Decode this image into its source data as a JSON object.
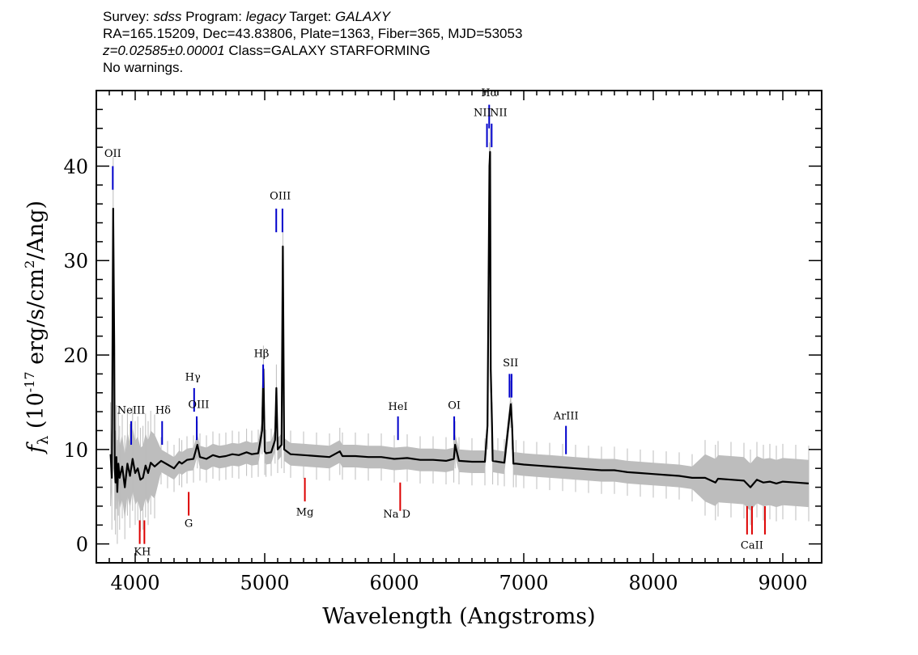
{
  "header": {
    "survey_label": "Survey:",
    "survey_value": "sdss",
    "program_label": "Program:",
    "program_value": "legacy",
    "target_label": "Target:",
    "target_value": "GALAXY",
    "line2": "RA=165.15209, Dec=43.83806, Plate=1363, Fiber=365, MJD=53053",
    "redshift": "z=0.02585±0.00001",
    "class_text": "Class=GALAXY STARFORMING",
    "warnings": "No warnings."
  },
  "colors": {
    "flux": "#000000",
    "error_band": "#bdbdbd",
    "emission": "#0000cc",
    "absorption": "#dd0000"
  },
  "chart_data": {
    "type": "line",
    "title": "",
    "xlabel": "Wavelength (Angstroms)",
    "ylabel": "f_λ (10^-17 erg/s/cm^2/Ang)",
    "xlim": [
      3700,
      9300
    ],
    "ylim": [
      -2,
      48
    ],
    "x_ticks": [
      4000,
      5000,
      6000,
      7000,
      8000,
      9000
    ],
    "y_ticks": [
      0,
      10,
      20,
      30,
      40
    ],
    "grid": false,
    "legend": "none",
    "series": [
      {
        "x": [
          3810,
          3820,
          3830,
          3838,
          3842,
          3848,
          3855,
          3862,
          3870,
          3880,
          3900,
          3920,
          3940,
          3960,
          3980,
          4000,
          4020,
          4040,
          4060,
          4080,
          4100,
          4120,
          4150,
          4200,
          4250,
          4300,
          4340,
          4360,
          4400,
          4450,
          4480,
          4500,
          4550,
          4600,
          4650,
          4700,
          4750,
          4800,
          4860,
          4900,
          4950,
          4980,
          4990,
          5000,
          5010,
          5050,
          5080,
          5090,
          5100,
          5130,
          5140,
          5150,
          5200,
          5300,
          5400,
          5500,
          5580,
          5600,
          5700,
          5800,
          5900,
          6000,
          6100,
          6200,
          6300,
          6400,
          6460,
          6470,
          6500,
          6600,
          6700,
          6720,
          6735,
          6740,
          6745,
          6755,
          6760,
          6800,
          6850,
          6900,
          6910,
          6920,
          6940,
          7000,
          7100,
          7200,
          7300,
          7400,
          7500,
          7600,
          7700,
          7800,
          7900,
          8000,
          8100,
          8200,
          8300,
          8400,
          8480,
          8500,
          8600,
          8700,
          8750,
          8800,
          8850,
          8900,
          8950,
          9000,
          9100,
          9200
        ],
        "y": [
          9.5,
          7.0,
          35.5,
          21.0,
          8.0,
          6.5,
          9.2,
          5.5,
          8.5,
          7.0,
          8.2,
          6.0,
          8.5,
          7.2,
          9.0,
          7.5,
          8.0,
          6.8,
          7.0,
          8.3,
          7.5,
          8.6,
          8.2,
          8.8,
          8.4,
          8.0,
          8.7,
          8.5,
          8.9,
          9.0,
          10.5,
          9.2,
          9.0,
          9.4,
          9.2,
          9.3,
          9.5,
          9.4,
          9.7,
          9.5,
          9.6,
          12.0,
          18.5,
          9.8,
          9.6,
          9.7,
          11.0,
          16.5,
          10.0,
          10.5,
          31.5,
          10.0,
          9.5,
          9.4,
          9.3,
          9.2,
          9.8,
          9.3,
          9.3,
          9.2,
          9.2,
          9.0,
          9.1,
          8.9,
          8.9,
          8.8,
          9.0,
          10.5,
          8.8,
          8.7,
          8.7,
          12.5,
          40.0,
          41.5,
          18.5,
          12.5,
          8.8,
          8.7,
          8.6,
          14.8,
          12.5,
          8.5,
          8.5,
          8.4,
          8.3,
          8.2,
          8.1,
          8.0,
          7.9,
          7.8,
          7.8,
          7.6,
          7.5,
          7.4,
          7.3,
          7.2,
          7.0,
          7.0,
          6.5,
          6.9,
          6.8,
          6.7,
          6.0,
          6.8,
          6.5,
          6.6,
          6.4,
          6.6,
          6.5,
          6.4
        ]
      }
    ],
    "emission_lines": [
      {
        "name": "OII",
        "wl": 3827,
        "top": 40.0,
        "bottom": 37.5
      },
      {
        "name": "NeIII",
        "wl": 3969,
        "top": 13.0,
        "bottom": 10.5
      },
      {
        "name": "Hδ",
        "wl": 4208,
        "top": 13.0,
        "bottom": 10.5
      },
      {
        "name": "Hγ",
        "wl": 4455,
        "top": 16.5,
        "bottom": 14.0
      },
      {
        "name": "OIII",
        "wl": 4475,
        "top": 13.5,
        "bottom": 11.0
      },
      {
        "name": "Hβ",
        "wl": 4988,
        "top": 19.0,
        "bottom": 16.5
      },
      {
        "name": "OIII",
        "wl": 5089,
        "top": 35.5,
        "bottom": 33.0
      },
      {
        "name": "OIII",
        "wl": 5137,
        "top": 35.5,
        "bottom": 33.0
      },
      {
        "name": "HeI",
        "wl": 6029,
        "top": 13.5,
        "bottom": 11.0
      },
      {
        "name": "OI",
        "wl": 6463,
        "top": 13.5,
        "bottom": 11.0
      },
      {
        "name": "NII",
        "wl": 6716,
        "top": 44.5,
        "bottom": 42.0
      },
      {
        "name": "Hα",
        "wl": 6733,
        "top": 46.5,
        "bottom": 44.0
      },
      {
        "name": "NII",
        "wl": 6752,
        "top": 44.5,
        "bottom": 42.0
      },
      {
        "name": "SII",
        "wl": 6890,
        "top": 18.0,
        "bottom": 15.5
      },
      {
        "name": "SII",
        "wl": 6906,
        "top": 18.0,
        "bottom": 15.5
      },
      {
        "name": "ArIII",
        "wl": 7326,
        "top": 12.5,
        "bottom": 9.5
      }
    ],
    "absorption_lines": [
      {
        "name": "K",
        "wl": 4035,
        "top": 2.5,
        "bottom": 0.0
      },
      {
        "name": "H",
        "wl": 4071,
        "top": 2.5,
        "bottom": 0.0
      },
      {
        "name": "G",
        "wl": 4413,
        "top": 5.5,
        "bottom": 3.0
      },
      {
        "name": "Mg",
        "wl": 5310,
        "top": 7.0,
        "bottom": 4.5
      },
      {
        "name": "Na D",
        "wl": 6046,
        "top": 6.5,
        "bottom": 3.5
      },
      {
        "name": "CaII",
        "wl": 8724,
        "top": 4.0,
        "bottom": 1.0
      },
      {
        "name": "CaII",
        "wl": 8762,
        "top": 4.0,
        "bottom": 1.0
      },
      {
        "name": "CaII",
        "wl": 8862,
        "top": 4.0,
        "bottom": 1.0
      }
    ],
    "line_labels": {
      "OII": "OII",
      "NeIII": "NeIII",
      "Hd": "Hδ",
      "Hg": "Hγ",
      "OIII_blue": "OIII",
      "Hb": "Hβ",
      "OIII": "OIII",
      "HeI": "HeI",
      "OI": "OI",
      "NII_left": "NII",
      "Ha": "Hα",
      "NII_right": "NII",
      "SII": "SII",
      "ArIII": "ArIII",
      "KH": "KH",
      "G": "G",
      "Mg": "Mg",
      "NaD": "Na  D",
      "CaII": "CaII"
    }
  }
}
